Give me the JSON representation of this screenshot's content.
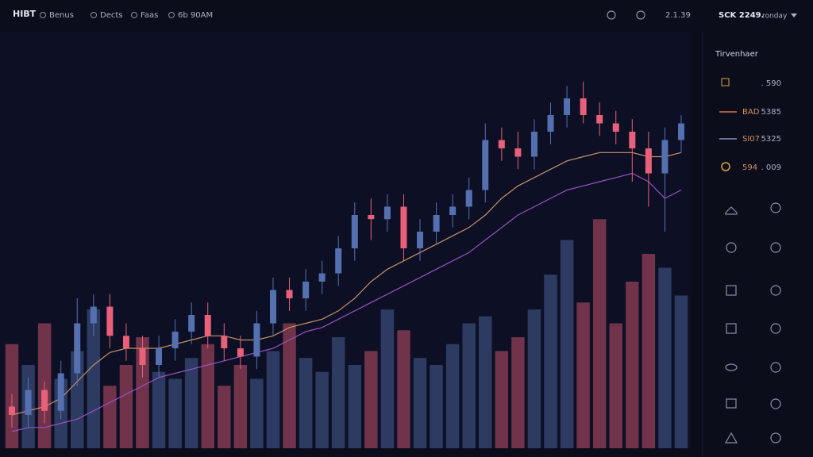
{
  "header": {
    "brand": "HIBT",
    "menu": [
      "Benus",
      "Dects",
      "Faas",
      "6b 90AM"
    ],
    "status": "2.1.39",
    "ticker": "SCK 2249.",
    "mode": "ronday"
  },
  "sidebar": {
    "title": "Tirvenhaer",
    "rows": [
      {
        "value": ". 590"
      },
      {
        "label": "BAD",
        "value": "5385"
      },
      {
        "label": "SI07",
        "value": "5325"
      },
      {
        "label": "594",
        "value": ". 009"
      }
    ]
  },
  "chart_data": {
    "type": "candlestick",
    "ylim": [
      0,
      100
    ],
    "open": [
      10,
      8,
      14,
      9,
      18,
      30,
      34,
      27,
      24,
      20,
      24,
      28,
      32,
      27,
      24,
      22,
      30,
      38,
      36,
      40,
      42,
      48,
      56,
      55,
      58,
      48,
      52,
      56,
      58,
      62,
      74,
      72,
      70,
      76,
      80,
      84,
      80,
      78,
      76,
      72,
      66,
      74
    ],
    "high": [
      13,
      17,
      16,
      21,
      36,
      37,
      37,
      30,
      27,
      27,
      31,
      35,
      35,
      30,
      27,
      33,
      41,
      41,
      43,
      45,
      51,
      59,
      60,
      61,
      61,
      55,
      59,
      61,
      65,
      78,
      77,
      76,
      79,
      83,
      87,
      88,
      83,
      81,
      79,
      76,
      77,
      80
    ],
    "low": [
      5,
      5,
      6,
      7,
      15,
      27,
      24,
      21,
      17,
      17,
      21,
      25,
      24,
      21,
      19,
      19,
      27,
      33,
      33,
      37,
      39,
      45,
      50,
      52,
      45,
      45,
      49,
      53,
      55,
      59,
      69,
      67,
      67,
      73,
      77,
      78,
      75,
      73,
      64,
      58,
      52,
      71
    ],
    "close": [
      8,
      14,
      9,
      18,
      30,
      34,
      27,
      24,
      20,
      24,
      28,
      32,
      27,
      24,
      22,
      30,
      38,
      36,
      40,
      42,
      48,
      56,
      55,
      58,
      48,
      52,
      56,
      58,
      62,
      74,
      72,
      70,
      76,
      80,
      84,
      80,
      78,
      76,
      72,
      66,
      74,
      78
    ],
    "up_color": "#5570b0",
    "down_color": "#e8607a",
    "lines": [
      {
        "color": "#c8906a",
        "values": [
          8,
          9,
          10,
          12,
          16,
          20,
          23,
          24,
          24,
          24,
          25,
          26,
          27,
          27,
          26,
          26,
          27,
          29,
          30,
          31,
          33,
          36,
          40,
          43,
          45,
          47,
          49,
          51,
          53,
          56,
          60,
          63,
          65,
          67,
          69,
          70,
          71,
          71,
          71,
          70,
          70,
          71
        ]
      },
      {
        "color": "#9b4fc4",
        "values": [
          4,
          5,
          5,
          6,
          7,
          9,
          11,
          13,
          15,
          17,
          18,
          19,
          20,
          21,
          22,
          23,
          24,
          26,
          28,
          29,
          31,
          33,
          35,
          37,
          39,
          41,
          43,
          45,
          47,
          50,
          53,
          56,
          58,
          60,
          62,
          63,
          64,
          65,
          66,
          64,
          60,
          62
        ]
      }
    ],
    "volume": [
      15,
      12,
      18,
      10,
      14,
      20,
      9,
      12,
      16,
      11,
      10,
      13,
      15,
      9,
      12,
      10,
      14,
      18,
      13,
      11,
      16,
      12,
      14,
      20,
      17,
      13,
      12,
      15,
      18,
      19,
      14,
      16,
      20,
      25,
      30,
      21,
      33,
      18,
      24,
      28,
      26,
      22
    ],
    "volume_ylim": [
      0,
      60
    ]
  }
}
